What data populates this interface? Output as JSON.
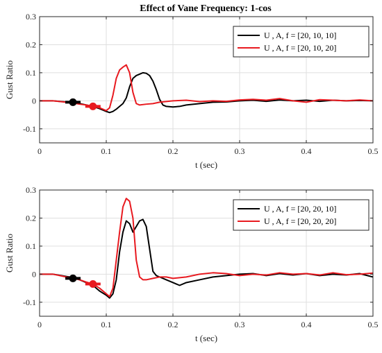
{
  "figure": {
    "title": "Effect of Vane Frequency: 1-cos"
  },
  "chart_data": [
    {
      "type": "line",
      "title": "Effect of Vane Frequency: 1-cos",
      "xlabel": "t (sec)",
      "ylabel": "Gust Ratio",
      "xlim": [
        0,
        0.5
      ],
      "ylim": [
        -0.15,
        0.3
      ],
      "xticks": [
        "0",
        "0.1",
        "0.2",
        "0.3",
        "0.4",
        "0.5"
      ],
      "yticks": [
        "-0.1",
        "0",
        "0.1",
        "0.2",
        "0.3"
      ],
      "xtick_values": [
        0,
        0.1,
        0.2,
        0.3,
        0.4,
        0.5
      ],
      "ytick_values": [
        -0.1,
        0,
        0.1,
        0.2,
        0.3
      ],
      "grid": true,
      "legend_position": "top-right",
      "series": [
        {
          "name": "U , A, f = [20, 10, 10]",
          "color": "#000000",
          "x": [
            0,
            0.02,
            0.04,
            0.05,
            0.06,
            0.07,
            0.08,
            0.09,
            0.1,
            0.105,
            0.11,
            0.115,
            0.12,
            0.125,
            0.13,
            0.135,
            0.14,
            0.145,
            0.15,
            0.155,
            0.16,
            0.165,
            0.17,
            0.175,
            0.18,
            0.185,
            0.19,
            0.2,
            0.21,
            0.22,
            0.24,
            0.26,
            0.28,
            0.3,
            0.32,
            0.34,
            0.36,
            0.38,
            0.4,
            0.42,
            0.44,
            0.46,
            0.48,
            0.5
          ],
          "y": [
            0,
            0,
            -0.004,
            -0.005,
            -0.01,
            -0.015,
            -0.02,
            -0.028,
            -0.038,
            -0.042,
            -0.038,
            -0.03,
            -0.02,
            -0.01,
            0.01,
            0.05,
            0.08,
            0.09,
            0.095,
            0.1,
            0.098,
            0.09,
            0.07,
            0.04,
            0.005,
            -0.015,
            -0.02,
            -0.022,
            -0.02,
            -0.015,
            -0.01,
            -0.005,
            -0.004,
            0,
            0.002,
            -0.002,
            0.003,
            0,
            0.002,
            -0.002,
            0.002,
            0,
            0.001,
            0
          ]
        },
        {
          "name": "U , A, f = [20, 10, 20]",
          "color": "#e8191f",
          "x": [
            0,
            0.02,
            0.04,
            0.05,
            0.06,
            0.07,
            0.08,
            0.09,
            0.095,
            0.1,
            0.105,
            0.11,
            0.115,
            0.12,
            0.125,
            0.13,
            0.135,
            0.14,
            0.145,
            0.15,
            0.16,
            0.17,
            0.18,
            0.2,
            0.22,
            0.24,
            0.26,
            0.28,
            0.3,
            0.32,
            0.34,
            0.36,
            0.38,
            0.4,
            0.42,
            0.44,
            0.46,
            0.48,
            0.5
          ],
          "y": [
            0,
            0,
            -0.005,
            -0.008,
            -0.012,
            -0.015,
            -0.02,
            -0.025,
            -0.03,
            -0.035,
            -0.025,
            0.02,
            0.08,
            0.11,
            0.12,
            0.128,
            0.1,
            0.03,
            -0.01,
            -0.015,
            -0.012,
            -0.01,
            -0.005,
            0,
            0.002,
            -0.003,
            0,
            -0.002,
            0.003,
            0.005,
            0.002,
            0.008,
            0,
            -0.005,
            0.004,
            0.002,
            0,
            0.003,
            0
          ]
        }
      ],
      "markers": [
        {
          "x": 0.05,
          "y": -0.005,
          "color": "#000000"
        },
        {
          "x": 0.08,
          "y": -0.02,
          "color": "#e8191f"
        }
      ]
    },
    {
      "type": "line",
      "xlabel": "t (sec)",
      "ylabel": "Gust Ratio",
      "xlim": [
        0,
        0.5
      ],
      "ylim": [
        -0.15,
        0.3
      ],
      "xticks": [
        "0",
        "0.1",
        "0.2",
        "0.3",
        "0.4",
        "0.5"
      ],
      "yticks": [
        "-0.1",
        "0",
        "0.1",
        "0.2",
        "0.3"
      ],
      "xtick_values": [
        0,
        0.1,
        0.2,
        0.3,
        0.4,
        0.5
      ],
      "ytick_values": [
        -0.1,
        0,
        0.1,
        0.2,
        0.3
      ],
      "grid": true,
      "legend_position": "top-right",
      "series": [
        {
          "name": "U , A, f = [20, 20, 10]",
          "color": "#000000",
          "x": [
            0,
            0.02,
            0.04,
            0.05,
            0.06,
            0.07,
            0.08,
            0.09,
            0.1,
            0.105,
            0.11,
            0.115,
            0.12,
            0.125,
            0.13,
            0.135,
            0.14,
            0.145,
            0.15,
            0.155,
            0.16,
            0.165,
            0.17,
            0.175,
            0.18,
            0.19,
            0.2,
            0.21,
            0.22,
            0.24,
            0.26,
            0.28,
            0.3,
            0.32,
            0.34,
            0.36,
            0.38,
            0.4,
            0.42,
            0.44,
            0.46,
            0.48,
            0.5
          ],
          "y": [
            0,
            0,
            -0.008,
            -0.012,
            -0.02,
            -0.03,
            -0.04,
            -0.06,
            -0.075,
            -0.085,
            -0.07,
            -0.02,
            0.08,
            0.15,
            0.19,
            0.18,
            0.15,
            0.17,
            0.19,
            0.195,
            0.17,
            0.09,
            0.01,
            -0.005,
            -0.01,
            -0.02,
            -0.03,
            -0.04,
            -0.03,
            -0.02,
            -0.01,
            -0.005,
            0,
            0.002,
            -0.005,
            0.002,
            -0.003,
            0.002,
            -0.005,
            0,
            -0.003,
            0.002,
            -0.01
          ]
        },
        {
          "name": "U , A, f = [20, 20, 20]",
          "color": "#e8191f",
          "x": [
            0,
            0.02,
            0.04,
            0.05,
            0.06,
            0.07,
            0.08,
            0.09,
            0.1,
            0.105,
            0.11,
            0.115,
            0.12,
            0.125,
            0.13,
            0.135,
            0.14,
            0.145,
            0.15,
            0.155,
            0.16,
            0.17,
            0.18,
            0.19,
            0.2,
            0.22,
            0.24,
            0.26,
            0.28,
            0.3,
            0.32,
            0.34,
            0.36,
            0.38,
            0.4,
            0.42,
            0.44,
            0.46,
            0.48,
            0.5
          ],
          "y": [
            0,
            0,
            -0.01,
            -0.015,
            -0.02,
            -0.028,
            -0.035,
            -0.05,
            -0.07,
            -0.08,
            -0.05,
            0.05,
            0.15,
            0.24,
            0.27,
            0.26,
            0.2,
            0.05,
            -0.01,
            -0.02,
            -0.02,
            -0.015,
            -0.01,
            -0.01,
            -0.015,
            -0.01,
            0,
            0.005,
            0.002,
            -0.005,
            0,
            -0.003,
            0.005,
            0,
            0.002,
            -0.003,
            0.005,
            -0.002,
            0,
            0.004
          ]
        }
      ],
      "markers": [
        {
          "x": 0.05,
          "y": -0.015,
          "color": "#000000"
        },
        {
          "x": 0.08,
          "y": -0.035,
          "color": "#e8191f"
        }
      ]
    }
  ]
}
